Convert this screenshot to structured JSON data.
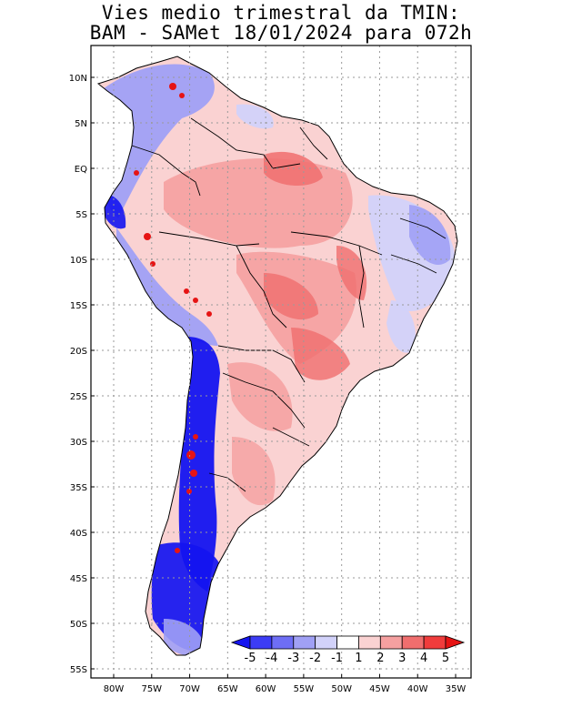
{
  "title": {
    "line1": "Vies medio trimestral da TMIN:",
    "line2": "BAM - SAMet 18/01/2024  para 072h"
  },
  "axes": {
    "lon_labels": [
      "80W",
      "75W",
      "70W",
      "65W",
      "60W",
      "55W",
      "50W",
      "45W",
      "40W",
      "35W"
    ],
    "lat_labels": [
      "10N",
      "5N",
      "EQ",
      "5S",
      "10S",
      "15S",
      "20S",
      "25S",
      "30S",
      "35S",
      "40S",
      "45S",
      "50S",
      "55S"
    ]
  },
  "colorbar": {
    "labels": [
      "-5",
      "-4",
      "-3",
      "-2",
      "-1",
      "1",
      "2",
      "3",
      "4",
      "5"
    ],
    "colors": [
      "#1414f0",
      "#3c3cf5",
      "#6e6ef5",
      "#a0a0f5",
      "#d2d2fa",
      "#ffffff",
      "#fad2d2",
      "#f5a0a0",
      "#f06e6e",
      "#f03c3c",
      "#e61414"
    ]
  },
  "colors": {
    "warm_light": "#fad2d2",
    "warm_mid": "#f5a0a0",
    "warm_strong": "#f06e6e",
    "cold_light": "#d2d2fa",
    "cold_mid": "#a0a0f5",
    "cold_strong": "#1414f0",
    "border": "#000000"
  }
}
